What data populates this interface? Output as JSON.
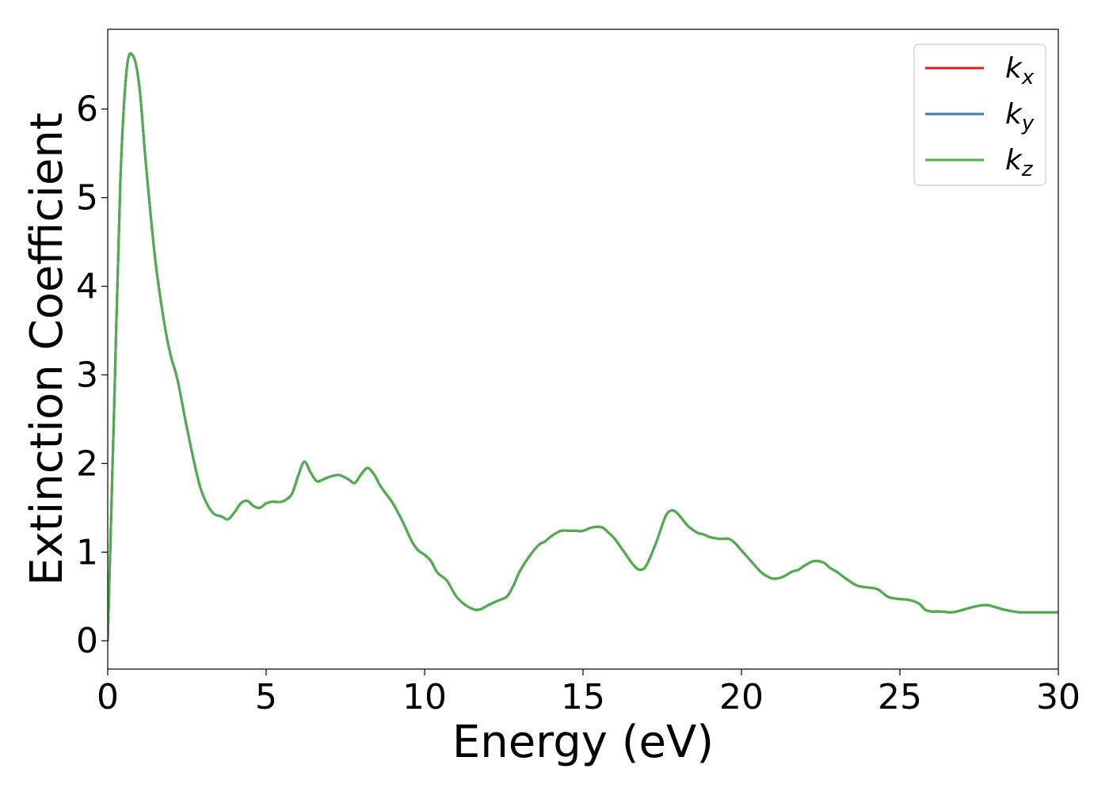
{
  "chart_data": {
    "type": "line",
    "title": "",
    "xlabel": "Energy (eV)",
    "ylabel": "Extinction Coefficient",
    "xlim": [
      0,
      30
    ],
    "ylim": [
      -0.32,
      6.9
    ],
    "xticks": [
      "0",
      "5",
      "10",
      "15",
      "20",
      "25",
      "30"
    ],
    "yticks": [
      "0",
      "1",
      "2",
      "3",
      "4",
      "5",
      "6"
    ],
    "grid": false,
    "legend_position": "top-right",
    "legend": [
      {
        "base": "k",
        "sub": "x",
        "color": "#e41a1c"
      },
      {
        "base": "k",
        "sub": "y",
        "color": "#377eb8"
      },
      {
        "base": "k",
        "sub": "z",
        "color": "#4daf4a"
      }
    ],
    "x": [
      0.0,
      0.2,
      0.4,
      0.6,
      0.8,
      1.0,
      1.2,
      1.5,
      1.8,
      2.0,
      2.2,
      2.5,
      2.8,
      3.0,
      3.3,
      3.6,
      3.8,
      4.0,
      4.2,
      4.4,
      4.6,
      4.8,
      5.0,
      5.2,
      5.5,
      5.8,
      6.0,
      6.2,
      6.4,
      6.6,
      6.8,
      7.0,
      7.3,
      7.6,
      7.8,
      8.0,
      8.2,
      8.4,
      8.6,
      8.8,
      9.0,
      9.3,
      9.6,
      9.8,
      10.0,
      10.2,
      10.4,
      10.7,
      11.0,
      11.3,
      11.6,
      11.8,
      12.0,
      12.3,
      12.6,
      12.8,
      13.0,
      13.3,
      13.6,
      13.8,
      14.0,
      14.3,
      14.6,
      14.8,
      15.0,
      15.3,
      15.6,
      15.8,
      16.0,
      16.3,
      16.6,
      16.8,
      17.0,
      17.3,
      17.6,
      17.8,
      18.0,
      18.3,
      18.6,
      18.8,
      19.0,
      19.3,
      19.6,
      19.8,
      20.0,
      20.3,
      20.6,
      20.8,
      21.0,
      21.3,
      21.6,
      21.8,
      22.0,
      22.3,
      22.6,
      22.8,
      23.0,
      23.3,
      23.6,
      23.8,
      24.0,
      24.3,
      24.6,
      24.8,
      25.0,
      25.3,
      25.6,
      25.8,
      26.0,
      26.3,
      26.6,
      26.8,
      27.0,
      27.3,
      27.6,
      27.8,
      28.0,
      28.3,
      28.6,
      28.8,
      29.0,
      29.3,
      29.6,
      29.8,
      30.0
    ],
    "series": [
      {
        "name": "k_x",
        "color": "#e41a1c",
        "values": [
          0.0,
          2.6,
          5.2,
          6.45,
          6.6,
          6.25,
          5.4,
          4.3,
          3.55,
          3.2,
          2.95,
          2.4,
          1.9,
          1.65,
          1.45,
          1.4,
          1.37,
          1.45,
          1.55,
          1.58,
          1.52,
          1.5,
          1.55,
          1.57,
          1.57,
          1.65,
          1.85,
          2.02,
          1.9,
          1.8,
          1.82,
          1.85,
          1.87,
          1.82,
          1.78,
          1.88,
          1.95,
          1.88,
          1.75,
          1.65,
          1.55,
          1.35,
          1.12,
          1.02,
          0.97,
          0.9,
          0.77,
          0.68,
          0.5,
          0.4,
          0.35,
          0.36,
          0.4,
          0.45,
          0.5,
          0.62,
          0.78,
          0.95,
          1.08,
          1.12,
          1.18,
          1.24,
          1.24,
          1.24,
          1.24,
          1.28,
          1.28,
          1.22,
          1.15,
          1.0,
          0.85,
          0.8,
          0.85,
          1.1,
          1.4,
          1.47,
          1.43,
          1.3,
          1.22,
          1.2,
          1.17,
          1.15,
          1.15,
          1.1,
          1.02,
          0.9,
          0.78,
          0.73,
          0.7,
          0.72,
          0.78,
          0.8,
          0.85,
          0.9,
          0.88,
          0.82,
          0.78,
          0.7,
          0.63,
          0.61,
          0.6,
          0.58,
          0.5,
          0.48,
          0.47,
          0.46,
          0.42,
          0.35,
          0.33,
          0.33,
          0.32,
          0.33,
          0.35,
          0.38,
          0.4,
          0.4,
          0.38,
          0.35,
          0.33,
          0.32,
          0.32,
          0.32,
          0.32,
          0.32,
          0.32
        ]
      },
      {
        "name": "k_y",
        "color": "#377eb8",
        "values": [
          0.0,
          2.6,
          5.2,
          6.45,
          6.6,
          6.25,
          5.4,
          4.3,
          3.55,
          3.2,
          2.95,
          2.4,
          1.9,
          1.65,
          1.45,
          1.4,
          1.37,
          1.45,
          1.55,
          1.58,
          1.52,
          1.5,
          1.55,
          1.57,
          1.57,
          1.65,
          1.85,
          2.02,
          1.9,
          1.8,
          1.82,
          1.85,
          1.87,
          1.82,
          1.78,
          1.88,
          1.95,
          1.88,
          1.75,
          1.65,
          1.55,
          1.35,
          1.12,
          1.02,
          0.97,
          0.9,
          0.77,
          0.68,
          0.5,
          0.4,
          0.35,
          0.36,
          0.4,
          0.45,
          0.5,
          0.62,
          0.78,
          0.95,
          1.08,
          1.12,
          1.18,
          1.24,
          1.24,
          1.24,
          1.24,
          1.28,
          1.28,
          1.22,
          1.15,
          1.0,
          0.85,
          0.8,
          0.85,
          1.1,
          1.4,
          1.47,
          1.43,
          1.3,
          1.22,
          1.2,
          1.17,
          1.15,
          1.15,
          1.1,
          1.02,
          0.9,
          0.78,
          0.73,
          0.7,
          0.72,
          0.78,
          0.8,
          0.85,
          0.9,
          0.88,
          0.82,
          0.78,
          0.7,
          0.63,
          0.61,
          0.6,
          0.58,
          0.5,
          0.48,
          0.47,
          0.46,
          0.42,
          0.35,
          0.33,
          0.33,
          0.32,
          0.33,
          0.35,
          0.38,
          0.4,
          0.4,
          0.38,
          0.35,
          0.33,
          0.32,
          0.32,
          0.32,
          0.32,
          0.32,
          0.32
        ]
      },
      {
        "name": "k_z",
        "color": "#4daf4a",
        "values": [
          0.0,
          2.6,
          5.2,
          6.45,
          6.6,
          6.25,
          5.4,
          4.3,
          3.55,
          3.2,
          2.95,
          2.4,
          1.9,
          1.65,
          1.45,
          1.4,
          1.37,
          1.45,
          1.55,
          1.58,
          1.52,
          1.5,
          1.55,
          1.57,
          1.57,
          1.65,
          1.85,
          2.02,
          1.9,
          1.8,
          1.82,
          1.85,
          1.87,
          1.82,
          1.78,
          1.88,
          1.95,
          1.88,
          1.75,
          1.65,
          1.55,
          1.35,
          1.12,
          1.02,
          0.97,
          0.9,
          0.77,
          0.68,
          0.5,
          0.4,
          0.35,
          0.36,
          0.4,
          0.45,
          0.5,
          0.62,
          0.78,
          0.95,
          1.08,
          1.12,
          1.18,
          1.24,
          1.24,
          1.24,
          1.24,
          1.28,
          1.28,
          1.22,
          1.15,
          1.0,
          0.85,
          0.8,
          0.85,
          1.1,
          1.4,
          1.47,
          1.43,
          1.3,
          1.22,
          1.2,
          1.17,
          1.15,
          1.15,
          1.1,
          1.02,
          0.9,
          0.78,
          0.73,
          0.7,
          0.72,
          0.78,
          0.8,
          0.85,
          0.9,
          0.88,
          0.82,
          0.78,
          0.7,
          0.63,
          0.61,
          0.6,
          0.58,
          0.5,
          0.48,
          0.47,
          0.46,
          0.42,
          0.35,
          0.33,
          0.33,
          0.32,
          0.33,
          0.35,
          0.38,
          0.4,
          0.4,
          0.38,
          0.35,
          0.33,
          0.32,
          0.32,
          0.32,
          0.32,
          0.32,
          0.32
        ]
      }
    ]
  }
}
